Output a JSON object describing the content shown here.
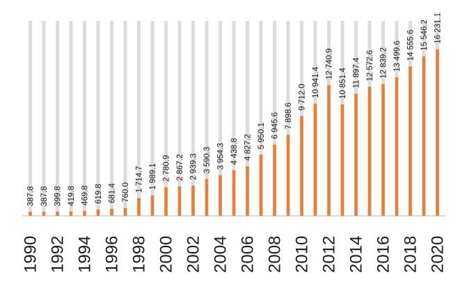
{
  "chart_data": {
    "type": "bar",
    "title": "",
    "xlabel": "",
    "ylabel": "",
    "ylim": [
      0,
      19000
    ],
    "grid": false,
    "legend": "none",
    "bar_color": "#ed7d31",
    "column_background_color": "#dcdcdc",
    "categories": [
      "1990",
      "1991",
      "1992",
      "1993",
      "1994",
      "1995",
      "1996",
      "1997",
      "1998",
      "1999",
      "2000",
      "2001",
      "2002",
      "2003",
      "2004",
      "2005",
      "2006",
      "2007",
      "2008",
      "2009",
      "2010",
      "2011",
      "2012",
      "2013",
      "2014",
      "2015",
      "2016",
      "2017",
      "2018",
      "2019",
      "2020"
    ],
    "tick_labels": [
      "1990",
      "",
      "1992",
      "",
      "1994",
      "",
      "1996",
      "",
      "1998",
      "",
      "2000",
      "",
      "2002",
      "",
      "2004",
      "",
      "2006",
      "",
      "2008",
      "",
      "2010",
      "",
      "2012",
      "",
      "2014",
      "",
      "2016",
      "",
      "2018",
      "",
      "2020"
    ],
    "values": [
      387.8,
      387.8,
      399.8,
      419.8,
      469.8,
      619.8,
      681.4,
      760.0,
      1714.7,
      1989.1,
      2780.9,
      2867.2,
      2939.3,
      3590.3,
      3954.3,
      4438.8,
      4827.2,
      5950.1,
      6945.6,
      7898.6,
      9712.0,
      10941.4,
      12740.9,
      10851.4,
      11897.4,
      12572.6,
      12839.2,
      13499.6,
      14555.6,
      15546.2,
      16231.1
    ],
    "value_labels": [
      "387.8",
      "387.8",
      "399.8",
      "419.8",
      "469.8",
      "619.8",
      "681.4",
      "760.0",
      "1 714.7",
      "1 989.1",
      "2 780.9",
      "2 867.2",
      "2 939.3",
      "3 590.3",
      "3 954.3",
      "4 438.8",
      "4 827.2",
      "5 950.1",
      "6 945.6",
      "7 898.6",
      "9 712.0",
      "10 941.4",
      "12 740.9",
      "10 851.4",
      "11 897.4",
      "12 572.6",
      "12 839.2",
      "13 499.6",
      "14 555.6",
      "15 546.2",
      "16 231.1"
    ]
  }
}
